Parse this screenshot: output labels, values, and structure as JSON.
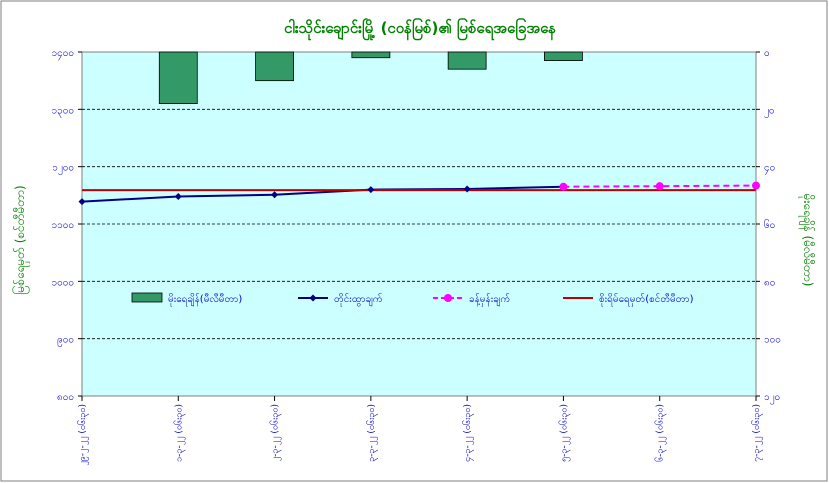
{
  "chart_data": {
    "type": "bar",
    "title": "ငါးသိုင်းချောင်းမြို့ (ငဝန်မြစ်)၏ မြစ်ရေအခြေအနေ",
    "ylabel_left": "မြစ်ရေမှတ် (စင်တီမီတာ)",
    "ylabel_right": "မိုးရေချိန် (မီလီမီတာ)",
    "categories": [
      "၂၉-၂-၂၂ (၀၆း၃၀)",
      "၁-၃-၂၂ (၀၆း၃၀)",
      "၂-၃-၂၂ (၀၆း၃၀)",
      "၃-၃-၂၂ (၀၆း၃၀)",
      "၄-၃-၂၂ (၀၆း၃၀)",
      "၅-၃-၂၂ (၀၆း၃၀)",
      "၆-၃-၂၂ (၀၆း၃၀)",
      "၇-၃-၂၂ (၀၆း၃၀)"
    ],
    "left_axis": {
      "min": 800,
      "max": 1400,
      "step": 100,
      "tick_labels": [
        "၈၀၀",
        "၉၀၀",
        "၁၀၀၀",
        "၁၁၀၀",
        "၁၂၀၀",
        "၁၃၀၀",
        "၁၄၀၀"
      ]
    },
    "right_axis": {
      "min": 0,
      "max": 120,
      "step": 20,
      "reversed": true,
      "tick_labels": [
        "၀",
        "၂၀",
        "၄၀",
        "၆၀",
        "၈၀",
        "၁၀၀",
        "၁၂၀"
      ]
    },
    "series": [
      {
        "name": "မိုးရေချိန်(မီလီမီတာ)",
        "kind": "bar",
        "axis": "right",
        "color": "#339966",
        "values": [
          null,
          18,
          10,
          2,
          6,
          3,
          null,
          null
        ]
      },
      {
        "name": "တိုင်းထွာချက်",
        "kind": "line",
        "axis": "left",
        "color": "#000080",
        "marker": "diamond",
        "values": [
          1139,
          1148,
          1151,
          1160,
          1161,
          1165,
          null,
          null
        ]
      },
      {
        "name": "ခန့်မှန်းချက်",
        "kind": "line",
        "axis": "left",
        "color": "#ff00ff",
        "dashed": true,
        "marker": "circle",
        "values": [
          null,
          null,
          null,
          null,
          null,
          1165,
          1166,
          1167
        ]
      },
      {
        "name": "စိုးရိမ်ရေမှတ်(စင်တီမီတာ)",
        "kind": "hline",
        "axis": "left",
        "color": "#c00000",
        "value": 1159
      }
    ],
    "grid": true,
    "legend_position": "inside-middle"
  }
}
